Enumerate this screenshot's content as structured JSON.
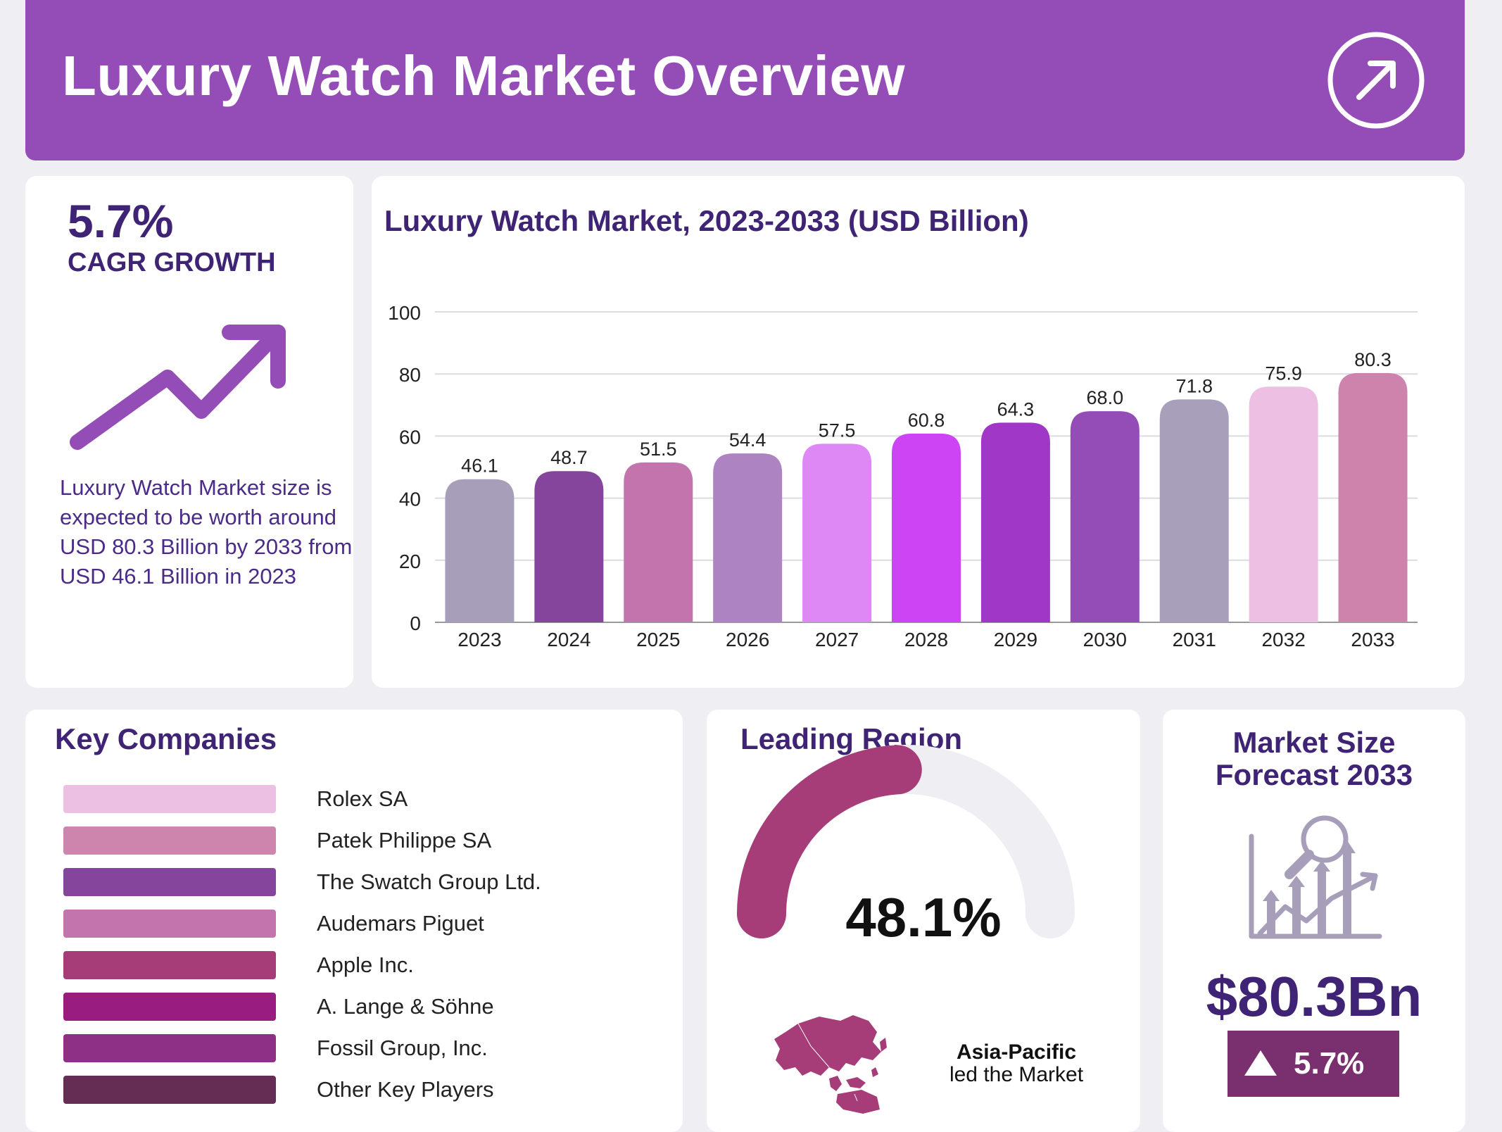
{
  "header": {
    "title": "Luxury Watch Market Overview",
    "icon": "arrow-up-right-circle-icon"
  },
  "cagr": {
    "value": "5.7%",
    "label": "CAGR GROWTH",
    "description": "Luxury Watch Market size is expected to be worth around USD 80.3 Billion by 2033 from USD 46.1 Billion in 2023"
  },
  "chart_data": {
    "type": "bar",
    "title": "Luxury Watch Market, 2023-2033 (USD Billion)",
    "categories": [
      "2023",
      "2024",
      "2025",
      "2026",
      "2027",
      "2028",
      "2029",
      "2030",
      "2031",
      "2032",
      "2033"
    ],
    "values": [
      46.1,
      48.7,
      51.5,
      54.4,
      57.5,
      60.8,
      64.3,
      68.0,
      71.8,
      75.9,
      80.3
    ],
    "value_labels": [
      "46.1",
      "48.7",
      "51.5",
      "54.4",
      "57.5",
      "60.8",
      "64.3",
      "68.0",
      "71.8",
      "75.9",
      "80.3"
    ],
    "colors": [
      "#a79fba",
      "#86459c",
      "#c374ad",
      "#ad83c2",
      "#de88f5",
      "#cd44f5",
      "#a137c6",
      "#944cb6",
      "#a89fba",
      "#edbfe3",
      "#ce83ad"
    ],
    "yticks": [
      "0",
      "20",
      "40",
      "60",
      "80",
      "100"
    ],
    "ylim": [
      0,
      100
    ],
    "xlabel": "",
    "ylabel": "",
    "grid": true
  },
  "companies": {
    "title": "Key Companies",
    "items": [
      {
        "label": "Rolex SA",
        "color": "#ecc0e3"
      },
      {
        "label": "Patek Philippe SA",
        "color": "#cd84ad"
      },
      {
        "label": "The Swatch Group Ltd.",
        "color": "#86459c"
      },
      {
        "label": "Audemars Piguet",
        "color": "#c374ad"
      },
      {
        "label": "Apple Inc.",
        "color": "#a63c78"
      },
      {
        "label": "A. Lange & Söhne",
        "color": "#991d80"
      },
      {
        "label": "Fossil Group, Inc.",
        "color": "#8e3186"
      },
      {
        "label": "Other Key Players",
        "color": "#662d54"
      }
    ]
  },
  "region": {
    "title": "Leading Region",
    "share_label": "48.1%",
    "share": 0.481,
    "name": "Asia-Pacific",
    "subtitle": "led the Market",
    "gauge_color": "#a63c78",
    "track_color": "#efeef3"
  },
  "forecast": {
    "title_line1": "Market Size",
    "title_line2": "Forecast 2033",
    "value": "$80.3Bn",
    "growth": "5.7%",
    "icon": "growth-chart-magnifier-icon"
  }
}
